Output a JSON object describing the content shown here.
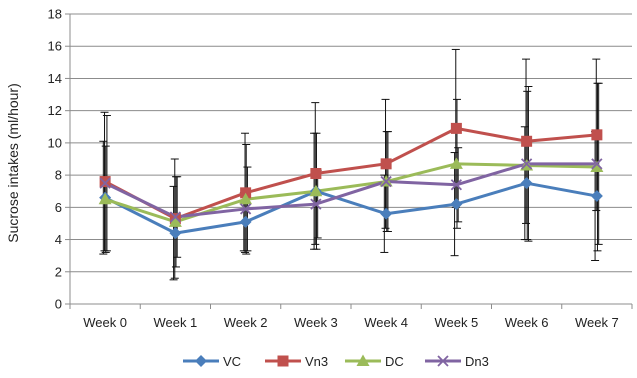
{
  "chart_data": {
    "type": "line",
    "title": "",
    "xlabel": "",
    "ylabel": "Sucrose intakes (ml/hour)",
    "ylim": [
      0,
      18
    ],
    "ytick_step": 2,
    "categories": [
      "Week 0",
      "Week 1",
      "Week 2",
      "Week 3",
      "Week 4",
      "Week 5",
      "Week 6",
      "Week 7"
    ],
    "grid": "horizontal",
    "legend_position": "bottom",
    "series": [
      {
        "name": "VC",
        "color": "#4a7ebb",
        "marker": "diamond",
        "values": [
          6.6,
          4.4,
          5.1,
          7.0,
          5.6,
          6.2,
          7.5,
          6.7
        ],
        "error": [
          3.5,
          2.9,
          1.8,
          3.6,
          2.4,
          3.2,
          3.5,
          4.0
        ]
      },
      {
        "name": "Vn3",
        "color": "#c0504d",
        "marker": "square",
        "values": [
          7.6,
          5.3,
          6.9,
          8.1,
          8.7,
          10.9,
          10.1,
          10.5
        ],
        "error": [
          4.3,
          3.7,
          3.7,
          4.4,
          4.0,
          4.9,
          5.1,
          4.7
        ]
      },
      {
        "name": "DC",
        "color": "#9bbb59",
        "marker": "triangle",
        "values": [
          6.5,
          5.1,
          6.5,
          7.0,
          7.6,
          8.7,
          8.6,
          8.5
        ],
        "error": [
          3.3,
          2.8,
          3.4,
          3.6,
          3.1,
          4.0,
          4.6,
          5.2
        ]
      },
      {
        "name": "Dn3",
        "color": "#8064a2",
        "marker": "x",
        "values": [
          7.5,
          5.4,
          5.9,
          6.2,
          7.6,
          7.4,
          8.7,
          8.7
        ],
        "error": [
          4.2,
          2.5,
          2.6,
          2.1,
          3.1,
          2.3,
          4.8,
          5.0
        ]
      }
    ]
  }
}
